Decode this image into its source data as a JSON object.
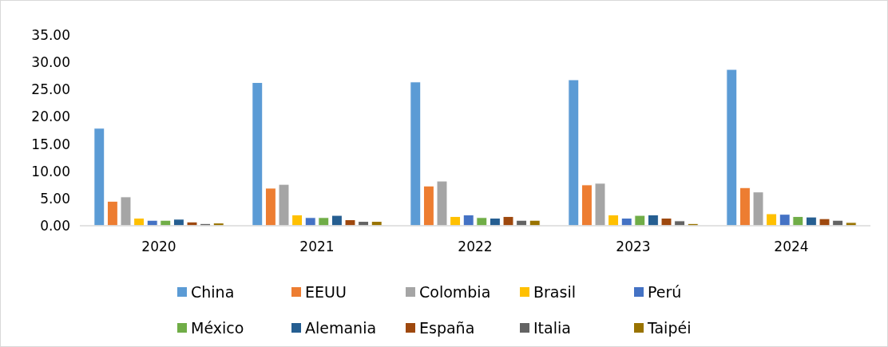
{
  "chart_data": {
    "type": "bar",
    "categories": [
      "2020",
      "2021",
      "2022",
      "2023",
      "2024"
    ],
    "series": [
      {
        "name": "China",
        "color": "#5b9bd5",
        "values": [
          17.9,
          26.3,
          26.4,
          26.8,
          28.7
        ]
      },
      {
        "name": "EEUU",
        "color": "#ed7d31",
        "values": [
          4.5,
          6.9,
          7.3,
          7.5,
          7.0
        ]
      },
      {
        "name": "Colombia",
        "color": "#a5a5a5",
        "values": [
          5.3,
          7.6,
          8.2,
          7.8,
          6.2
        ]
      },
      {
        "name": "Brasil",
        "color": "#ffc000",
        "values": [
          1.4,
          2.0,
          1.7,
          2.0,
          2.2
        ]
      },
      {
        "name": "Perú",
        "color": "#4472c4",
        "values": [
          1.0,
          1.5,
          2.0,
          1.4,
          2.1
        ]
      },
      {
        "name": "México",
        "color": "#70ad47",
        "values": [
          1.0,
          1.5,
          1.5,
          1.9,
          1.7
        ]
      },
      {
        "name": "Alemania",
        "color": "#255e91",
        "values": [
          1.2,
          1.9,
          1.4,
          2.0,
          1.6
        ]
      },
      {
        "name": "España",
        "color": "#9e480e",
        "values": [
          0.7,
          1.1,
          1.7,
          1.4,
          1.3
        ]
      },
      {
        "name": "Italia",
        "color": "#636363",
        "values": [
          0.4,
          0.8,
          1.0,
          0.9,
          1.0
        ]
      },
      {
        "name": "Taipéi",
        "color": "#997300",
        "values": [
          0.5,
          0.8,
          1.0,
          0.4,
          0.6
        ]
      }
    ],
    "ylim": [
      0,
      35
    ],
    "yticks": [
      {
        "value": 0,
        "label": "0.00"
      },
      {
        "value": 5,
        "label": "5.00"
      },
      {
        "value": 10,
        "label": "10.00"
      },
      {
        "value": 15,
        "label": "15.00"
      },
      {
        "value": 20,
        "label": "20.00"
      },
      {
        "value": 25,
        "label": "25.00"
      },
      {
        "value": 30,
        "label": "30.00"
      },
      {
        "value": 35,
        "label": "35.00"
      }
    ],
    "grid": false,
    "legend": "bottom"
  }
}
